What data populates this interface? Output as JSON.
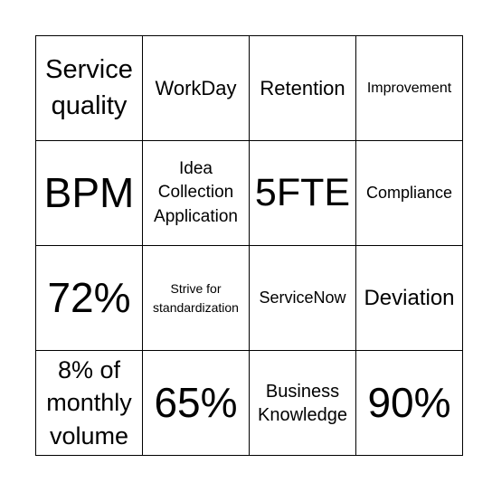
{
  "board": {
    "rows": [
      [
        "Service quality",
        "WorkDay",
        "Retention",
        "Improvement"
      ],
      [
        "BPM",
        "Idea Collection Application",
        "5FTE",
        "Compliance"
      ],
      [
        "72%",
        "Strive for standardization",
        "ServiceNow",
        "Deviation"
      ],
      [
        "8% of monthly volume",
        "65%",
        "Business Knowledge",
        "90%"
      ]
    ]
  }
}
